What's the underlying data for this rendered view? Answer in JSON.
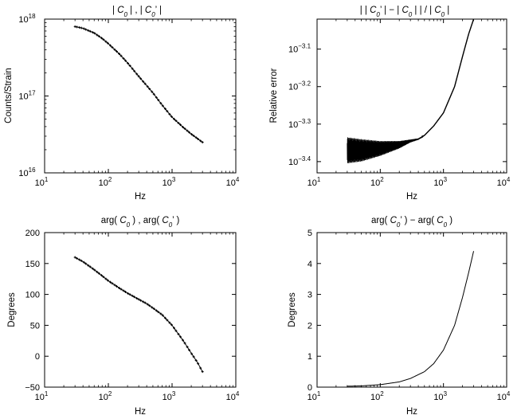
{
  "chart_data": [
    {
      "type": "line",
      "panel": "top-left",
      "title": "| C0 | , | C0' |",
      "xlabel": "Hz",
      "ylabel": "Counts/Strain",
      "xscale": "log",
      "yscale": "log",
      "xlim": [
        10,
        10000
      ],
      "ylim": [
        1e+16,
        1e+18
      ],
      "x_ticks": [
        "1",
        "2",
        "3",
        "4"
      ],
      "y_ticks": [
        "16",
        "17",
        "18"
      ],
      "tick_base": "10",
      "series": [
        {
          "style": "solid",
          "x": [
            30,
            40,
            60,
            80,
            100,
            150,
            200,
            300,
            500,
            700,
            1000,
            1500,
            2000,
            3000
          ],
          "y": [
            8e+17,
            7.6e+17,
            6.6e+17,
            5.6e+17,
            4.8e+17,
            3.5e+17,
            2.7e+17,
            1.8e+17,
            1.1e+17,
            7.6e+16,
            5.3e+16,
            3.9e+16,
            3.2e+16,
            2.5e+16
          ]
        },
        {
          "style": "dotted",
          "x": [
            30,
            40,
            60,
            80,
            100,
            150,
            200,
            300,
            500,
            700,
            1000,
            1500,
            2000,
            3000
          ],
          "y": [
            8e+17,
            7.6e+17,
            6.6e+17,
            5.6e+17,
            4.8e+17,
            3.5e+17,
            2.7e+17,
            1.8e+17,
            1.1e+17,
            7.6e+16,
            5.3e+16,
            3.9e+16,
            3.2e+16,
            2.5e+16
          ]
        }
      ]
    },
    {
      "type": "line",
      "panel": "top-right",
      "title": "| | C0' | − | C0 | | / | C0 |",
      "xlabel": "Hz",
      "ylabel": "Relative error",
      "xscale": "log",
      "yscale": "log",
      "xlim": [
        10,
        10000
      ],
      "ylim": [
        -3.43,
        -3.02
      ],
      "x_ticks": [
        "1",
        "2",
        "3",
        "4"
      ],
      "y_ticks": [
        "-3.1",
        "-3.2",
        "-3.3",
        "-3.4"
      ],
      "tick_base": "10",
      "series": [
        {
          "style": "solid",
          "x": [
            30,
            50,
            100,
            200,
            300,
            400,
            500,
            700,
            1000,
            1500,
            2000,
            2500,
            3000
          ],
          "y": [
            -3.37,
            -3.37,
            -3.365,
            -3.355,
            -3.345,
            -3.34,
            -3.33,
            -3.305,
            -3.27,
            -3.2,
            -3.12,
            -3.06,
            -3.02
          ],
          "noise_amplitude": [
            0.035,
            0.03,
            0.02,
            0.01,
            0.004,
            0.002,
            0.0,
            0.0,
            0.0,
            0.0,
            0.0,
            0.0,
            0.0
          ]
        }
      ]
    },
    {
      "type": "line",
      "panel": "bottom-left",
      "title": "arg( C0 ) , arg( C0' )",
      "xlabel": "Hz",
      "ylabel": "Degrees",
      "xscale": "log",
      "yscale": "linear",
      "xlim": [
        10,
        10000
      ],
      "ylim": [
        -50,
        200
      ],
      "x_ticks": [
        "1",
        "2",
        "3",
        "4"
      ],
      "y_ticks": [
        "−50",
        "0",
        "50",
        "100",
        "150",
        "200"
      ],
      "tick_base": "10",
      "series": [
        {
          "style": "solid",
          "x": [
            30,
            40,
            60,
            80,
            100,
            150,
            200,
            300,
            400,
            500,
            700,
            1000,
            1500,
            2000,
            2500,
            3000
          ],
          "y": [
            160,
            153,
            140,
            130,
            122,
            110,
            102,
            92,
            85,
            78,
            67,
            50,
            25,
            5,
            -10,
            -25
          ]
        },
        {
          "style": "dotted",
          "x": [
            30,
            40,
            60,
            80,
            100,
            150,
            200,
            300,
            400,
            500,
            700,
            1000,
            1500,
            2000,
            2500,
            3000
          ],
          "y": [
            160,
            153,
            140,
            130,
            122,
            110,
            102,
            92,
            85,
            78,
            67,
            50,
            25,
            5,
            -10,
            -25
          ]
        }
      ]
    },
    {
      "type": "line",
      "panel": "bottom-right",
      "title": "arg( C0' ) − arg( C0 )",
      "xlabel": "Hz",
      "ylabel": "Degrees",
      "xscale": "log",
      "yscale": "linear",
      "xlim": [
        10,
        10000
      ],
      "ylim": [
        0,
        5
      ],
      "x_ticks": [
        "1",
        "2",
        "3",
        "4"
      ],
      "y_ticks": [
        "0",
        "1",
        "2",
        "3",
        "4",
        "5"
      ],
      "tick_base": "10",
      "series": [
        {
          "style": "solid",
          "x": [
            30,
            50,
            100,
            200,
            300,
            500,
            700,
            1000,
            1500,
            2000,
            2500,
            3000
          ],
          "y": [
            0.03,
            0.04,
            0.08,
            0.17,
            0.28,
            0.5,
            0.76,
            1.2,
            2.0,
            2.9,
            3.7,
            4.4
          ]
        }
      ]
    }
  ]
}
